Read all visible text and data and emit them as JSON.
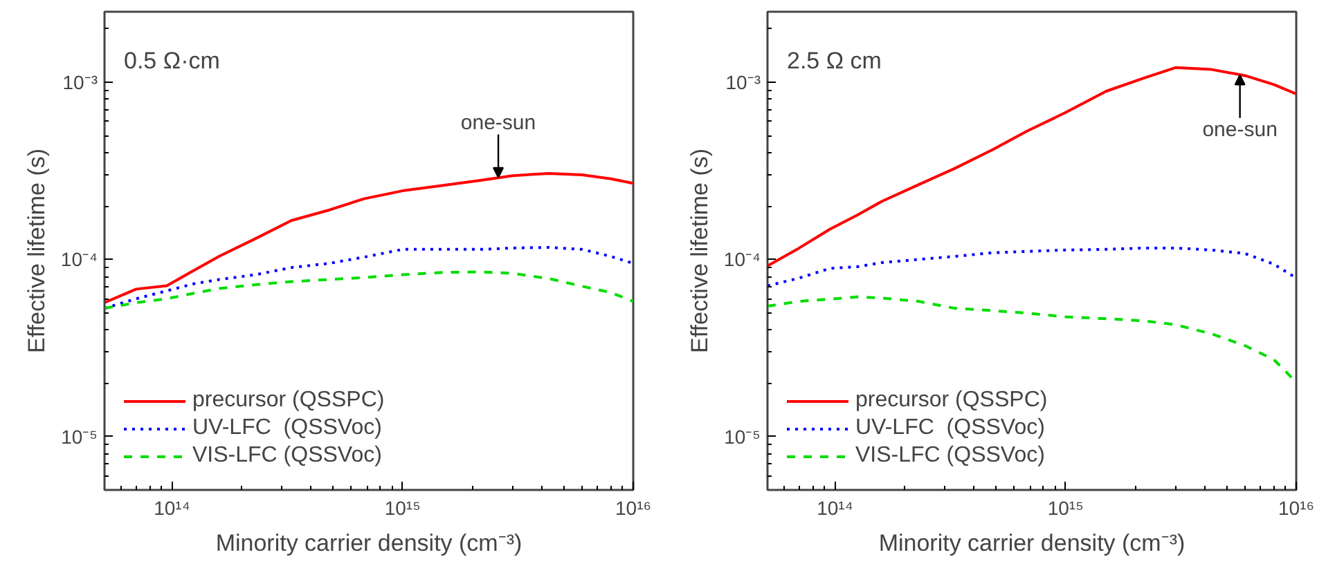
{
  "chart_data": [
    {
      "type": "line",
      "xlabel": "Minority carrier density (cm⁻³)",
      "ylabel": "Effective lifetime (s)",
      "log": "xy",
      "grid": false,
      "legend": "bottom left",
      "xlim": [
        51000000000000.0,
        1e+16
      ],
      "ylim": [
        5e-06,
        0.0025
      ],
      "xticks": [
        {
          "value": 100000000000000.0,
          "label": "10¹⁴"
        },
        {
          "value": 1000000000000000.0,
          "label": "10¹⁵"
        },
        {
          "value": 1e+16,
          "label": "10¹⁶"
        }
      ],
      "yticks": [
        {
          "value": 1e-05,
          "label": "10⁻⁵"
        },
        {
          "value": 0.0001,
          "label": "10⁻⁴"
        },
        {
          "value": 0.001,
          "label": "10⁻³"
        }
      ],
      "x": [
        51000000000000.0,
        70000000000000.0,
        95000000000000.0,
        125000000000000.0,
        160000000000000.0,
        230000000000000.0,
        330000000000000.0,
        480000000000000.0,
        680000000000000.0,
        1000000000000000.0,
        1500000000000000.0,
        2200000000000000.0,
        3000000000000000.0,
        4300000000000000.0,
        6000000000000000.0,
        8000000000000000.0,
        1e+16
      ],
      "annotations": [
        "0.5 Ω·cm",
        {
          "text": "one-sun",
          "x": 2600000000000000.0,
          "y": 0.00029
        }
      ],
      "series": [
        {
          "name": "precursor (QSSPC)",
          "color": "#ff0000",
          "line_style": "solid",
          "values": [
            5.7e-05,
            6.8e-05,
            7.1e-05,
            8.7e-05,
            0.000104,
            0.000131,
            0.000166,
            0.00019,
            0.00022,
            0.000244,
            0.000262,
            0.00028,
            0.000297,
            0.000306,
            0.0003,
            0.000285,
            0.000269
          ]
        },
        {
          "name": "UV-LFC  (QSSVoc)",
          "color": "#0000ff",
          "line_style": "dotted",
          "values": [
            5.3e-05,
            6e-05,
            6.65e-05,
            7.3e-05,
            7.7e-05,
            8.2e-05,
            9e-05,
            9.5e-05,
            0.000103,
            0.000114,
            0.000114,
            0.000114,
            0.000116,
            0.000117,
            0.000114,
            0.000104,
            9.5e-05
          ]
        },
        {
          "name": "VIS-LFC (QSSVoc)",
          "color": "#00dd00",
          "line_style": "dashed",
          "values": [
            5.3e-05,
            5.7e-05,
            6e-05,
            6.45e-05,
            6.85e-05,
            7.2e-05,
            7.5e-05,
            7.7e-05,
            7.9e-05,
            8.2e-05,
            8.45e-05,
            8.5e-05,
            8.35e-05,
            7.8e-05,
            7.06e-05,
            6.5e-05,
            5.8e-05
          ]
        }
      ]
    },
    {
      "type": "line",
      "xlabel": "Minority carrier density (cm⁻³)",
      "ylabel": "Effective lifetime (s)",
      "log": "xy",
      "grid": false,
      "legend": "bottom left",
      "xlim": [
        51000000000000.0,
        1e+16
      ],
      "ylim": [
        5e-06,
        0.0025
      ],
      "xticks": [
        {
          "value": 100000000000000.0,
          "label": "10¹⁴"
        },
        {
          "value": 1000000000000000.0,
          "label": "10¹⁵"
        },
        {
          "value": 1e+16,
          "label": "10¹⁶"
        }
      ],
      "yticks": [
        {
          "value": 1e-05,
          "label": "10⁻⁵"
        },
        {
          "value": 0.0001,
          "label": "10⁻⁴"
        },
        {
          "value": 0.001,
          "label": "10⁻³"
        }
      ],
      "x": [
        51000000000000.0,
        70000000000000.0,
        95000000000000.0,
        125000000000000.0,
        160000000000000.0,
        230000000000000.0,
        330000000000000.0,
        480000000000000.0,
        680000000000000.0,
        1000000000000000.0,
        1500000000000000.0,
        2200000000000000.0,
        3000000000000000.0,
        4300000000000000.0,
        6000000000000000.0,
        8000000000000000.0,
        1e+16
      ],
      "annotations": [
        "2.5 Ω cm",
        {
          "text": "one-sun",
          "x": 5700000000000000.0,
          "y": 0.0011
        }
      ],
      "series": [
        {
          "name": "precursor (QSSPC)",
          "color": "#ff0000",
          "line_style": "solid",
          "values": [
            9.2e-05,
            0.000116,
            0.000148,
            0.000178,
            0.000213,
            0.000264,
            0.000326,
            0.000415,
            0.00053,
            0.000675,
            0.00089,
            0.00106,
            0.00121,
            0.00118,
            0.00109,
            0.00097,
            0.00086
          ]
        },
        {
          "name": "UV-LFC  (QSSVoc)",
          "color": "#0000ff",
          "line_style": "dotted",
          "values": [
            7.1e-05,
            7.85e-05,
            8.9e-05,
            9.1e-05,
            9.6e-05,
            0.0001,
            0.000104,
            0.000109,
            0.000111,
            0.000113,
            0.000114,
            0.000116,
            0.000116,
            0.000113,
            0.000108,
            9.4e-05,
            7.85e-05
          ]
        },
        {
          "name": "VIS-LFC (QSSVoc)",
          "color": "#00dd00",
          "line_style": "dashed",
          "values": [
            5.45e-05,
            5.8e-05,
            5.97e-05,
            6.15e-05,
            6.05e-05,
            5.8e-05,
            5.3e-05,
            5.14e-05,
            4.98e-05,
            4.74e-05,
            4.63e-05,
            4.5e-05,
            4.28e-05,
            3.8e-05,
            3.26e-05,
            2.72e-05,
            2.03e-05
          ]
        }
      ]
    }
  ]
}
